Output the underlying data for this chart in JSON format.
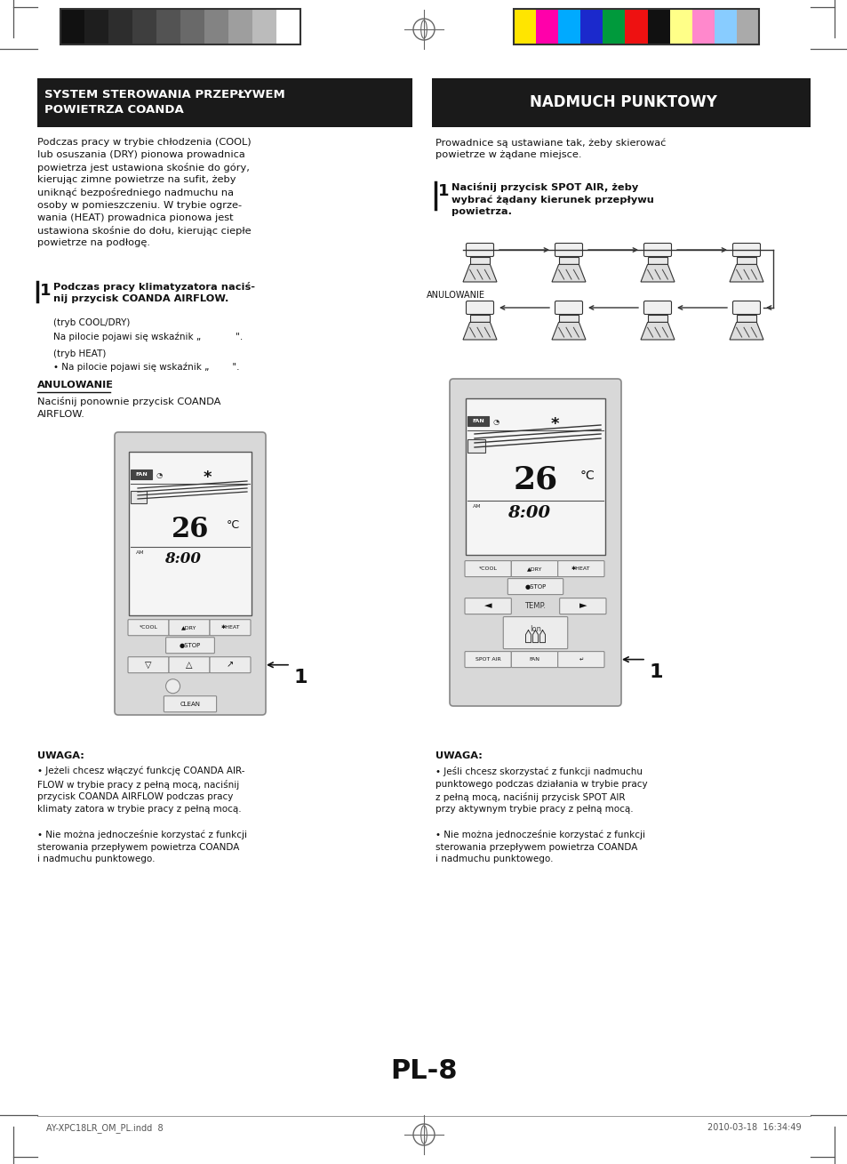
{
  "page_bg": "#ffffff",
  "page_number": "PL-8",
  "footer_left": "AY-XPC18LR_OM_PL.indd  8",
  "footer_right": "2010-03-18  16:34:49",
  "left_title_line1": "SYSTEM STEROWANIA PRZEPŁYWEM",
  "left_title_line2": "POWIETRZA COANDA",
  "right_title": "NADMUCH PUNKTOWY",
  "left_body1": "Podczas pracy w trybie chłodzenia (COOL)\nlub osuszania (DRY) pionowa prowadnica\npowietrza jest ustawiona skośnie do góry,\nkierując zimne powietrze na sufit, żeby\nuniknąć bezpośredniego nadmuchu na\nosoby w pomieszczeniu. W trybie ogrze-\nwania (HEAT) prowadnica pionowa jest\nustawiona skośnie do dołu, kierując ciepłe\npowietrze na podłogę.",
  "left_step1_bold": "Podczas pracy klimatyzatora naciś-\nnij przycisk COANDA AIRFLOW.",
  "left_sub1_title": "(tryb COOL/DRY)",
  "left_sub1_body": "Na pilocie pojawi się wskaźnik „            \".",
  "left_sub2_title": "(tryb HEAT)",
  "left_sub2_body": "• Na pilocie pojawi się wskaźnik „        \".",
  "left_anulowanie_title": "ANULOWANIE",
  "left_anulowanie_body": "Naciśnij ponownie przycisk COANDA\nAIRFLOW.",
  "right_body1": "Prowadnice są ustawiane tak, żeby skierować\npowietrze w żądane miejsce.",
  "right_step1_bold": "Naciśnij przycisk SPOT AIR, żeby\nwybrać żądany kierunek przepływu\npowietrza.",
  "anulowanie_label": "ANULOWANIE",
  "left_uwaga_title": "UWAGA:",
  "left_uwaga_b1": "• Jeżeli chcesz włączyć funkcję COANDA AIR-\nFLOW w trybie pracy z pełną mocą, naciśnij\nprzycisk COANDA AIRFLOW podczas pracy\nklimaty zatora w trybie pracy z pełną mocą.",
  "left_uwaga_b2": "• Nie można jednocześnie korzystać z funkcji\nsterowania przepływem powietrza COANDA\ni nadmuchu punktowego.",
  "right_uwaga_title": "UWAGA:",
  "right_uwaga_b1": "• Jeśli chcesz skorzystać z funkcji nadmuchu\npunktowego podczas działania w trybie pracy\nz pełną mocą, naciśnij przycisk SPOT AIR\nprzy aktywnym trybie pracy z pełną mocą.",
  "right_uwaga_b2": "• Nie można jednocześnie korzystać z funkcji\nsterowania przepływem powietrza COANDA\ni nadmuchu punktowego.",
  "gray_colors": [
    "#111111",
    "#1e1e1e",
    "#2d2d2d",
    "#3e3e3e",
    "#535353",
    "#696969",
    "#838383",
    "#9e9e9e",
    "#bbbbbb",
    "#ffffff"
  ],
  "color_colors": [
    "#FFE500",
    "#FF00AA",
    "#00AAFF",
    "#1B29CC",
    "#009A3C",
    "#EE1111",
    "#111111",
    "#FFFF88",
    "#FF88CC",
    "#88CCFF",
    "#AAAAAA"
  ],
  "left_title_bg": "#1a1a1a",
  "right_title_bg": "#1a1a1a",
  "title_fg": "#ffffff"
}
